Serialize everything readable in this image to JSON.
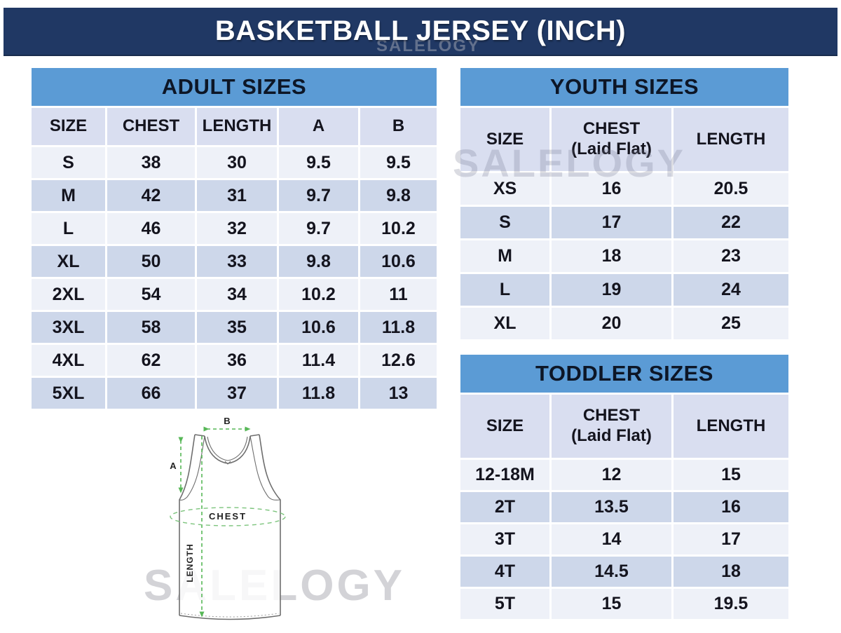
{
  "header": {
    "title": "BASKETBALL JERSEY (INCH)"
  },
  "watermark": {
    "brand": "SALELOGY"
  },
  "tables": {
    "adult": {
      "title": "ADULT SIZES",
      "columns": [
        "SIZE",
        "CHEST",
        "LENGTH",
        "A",
        "B"
      ],
      "rows": [
        [
          "S",
          "38",
          "30",
          "9.5",
          "9.5"
        ],
        [
          "M",
          "42",
          "31",
          "9.7",
          "9.8"
        ],
        [
          "L",
          "46",
          "32",
          "9.7",
          "10.2"
        ],
        [
          "XL",
          "50",
          "33",
          "9.8",
          "10.6"
        ],
        [
          "2XL",
          "54",
          "34",
          "10.2",
          "11"
        ],
        [
          "3XL",
          "58",
          "35",
          "10.6",
          "11.8"
        ],
        [
          "4XL",
          "62",
          "36",
          "11.4",
          "12.6"
        ],
        [
          "5XL",
          "66",
          "37",
          "11.8",
          "13"
        ]
      ]
    },
    "youth": {
      "title": "YOUTH SIZES",
      "columns": [
        "SIZE",
        "CHEST\n(Laid Flat)",
        "LENGTH"
      ],
      "rows": [
        [
          "XS",
          "16",
          "20.5"
        ],
        [
          "S",
          "17",
          "22"
        ],
        [
          "M",
          "18",
          "23"
        ],
        [
          "L",
          "19",
          "24"
        ],
        [
          "XL",
          "20",
          "25"
        ]
      ]
    },
    "toddler": {
      "title": "TODDLER SIZES",
      "columns": [
        "SIZE",
        "CHEST\n(Laid Flat)",
        "LENGTH"
      ],
      "rows": [
        [
          "12-18M",
          "12",
          "15"
        ],
        [
          "2T",
          "13.5",
          "16"
        ],
        [
          "3T",
          "14",
          "17"
        ],
        [
          "4T",
          "14.5",
          "18"
        ],
        [
          "5T",
          "15",
          "19.5"
        ]
      ]
    }
  },
  "diagram": {
    "labels": {
      "a": "A",
      "b": "B",
      "chest": "CHEST",
      "length": "LENGTH"
    }
  },
  "colors": {
    "banner_navy": "#203864",
    "table_header_blue": "#5b9bd5",
    "column_header_bg": "#d9def0",
    "row_light": "#eef1f8",
    "row_dark": "#cdd7ea",
    "annotation_green": "#57b757",
    "watermark_gray": "#d3d3d7"
  }
}
